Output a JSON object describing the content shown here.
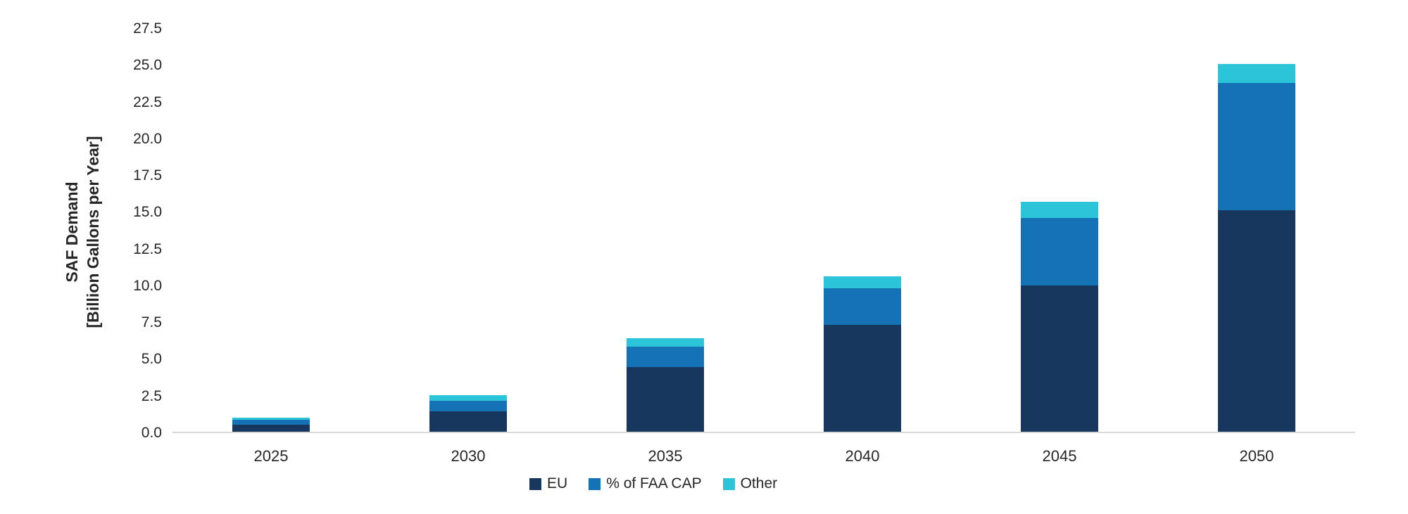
{
  "chart_data": {
    "type": "bar",
    "stacked": true,
    "title": "",
    "ylabel_line1": "SAF Demand",
    "ylabel_line2": "[Billion Gallons per Year]",
    "xlabel": "",
    "categories": [
      "2025",
      "2030",
      "2035",
      "2040",
      "2045",
      "2050"
    ],
    "series": [
      {
        "name": "EU",
        "color": "#17375E",
        "values": [
          0.5,
          1.4,
          4.4,
          7.3,
          10.0,
          15.1
        ]
      },
      {
        "name": "% of FAA CAP",
        "color": "#1572B5",
        "values": [
          0.3,
          0.7,
          1.4,
          2.5,
          4.6,
          8.7
        ]
      },
      {
        "name": "Other",
        "color": "#2BC4D9",
        "values": [
          0.15,
          0.4,
          0.6,
          0.8,
          1.1,
          1.3
        ]
      }
    ],
    "ylim": [
      0,
      27.5
    ],
    "ytick_step": 2.5,
    "yticks": [
      0,
      2.5,
      5,
      7.5,
      10,
      12.5,
      15,
      17.5,
      20,
      22.5,
      25,
      27.5
    ],
    "grid": false,
    "legend_position": "bottom",
    "axis_color": "#d9d9d9",
    "text_color": "#262626"
  }
}
